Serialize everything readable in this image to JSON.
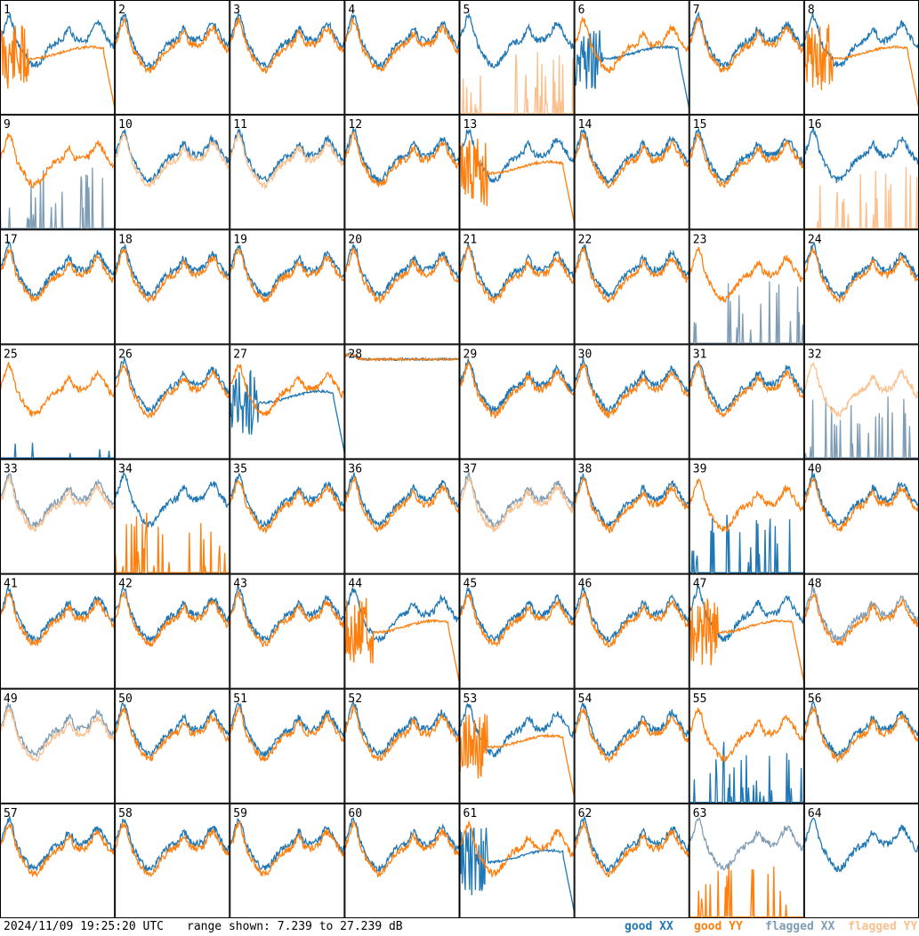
{
  "footer": {
    "timestamp": "2024/11/09 19:25:20 UTC",
    "range_label": "range shown: 7.239 to 27.239 dB",
    "legend": [
      {
        "label": "good XX",
        "color": "#1f77b4"
      },
      {
        "label": "good YY",
        "color": "#ff7f0e"
      },
      {
        "label": "flagged XX",
        "color": "#7f9db5"
      },
      {
        "label": "flagged YY",
        "color": "#fbc08d"
      }
    ]
  },
  "chart_data": {
    "type": "line",
    "title": "",
    "ylim": [
      7.239,
      27.239
    ],
    "grid": {
      "rows": 8,
      "cols": 8
    },
    "colors": {
      "good_xx": "#1f77b4",
      "good_yy": "#ff7f0e",
      "flagged_xx": "#7f9db5",
      "flagged_yy": "#fbc08d"
    },
    "panel_labels": [
      "1",
      "2",
      "3",
      "4",
      "5",
      "6",
      "7",
      "8",
      "9",
      "10",
      "11",
      "12",
      "13",
      "14",
      "15",
      "16",
      "17",
      "18",
      "19",
      "20",
      "21",
      "22",
      "23",
      "24",
      "25",
      "26",
      "27",
      "28",
      "29",
      "30",
      "31",
      "32",
      "33",
      "34",
      "35",
      "36",
      "37",
      "38",
      "39",
      "40",
      "41",
      "42",
      "43",
      "44",
      "45",
      "46",
      "47",
      "48",
      "49",
      "50",
      "51",
      "52",
      "53",
      "54",
      "55",
      "56",
      "57",
      "58",
      "59",
      "60",
      "61",
      "62",
      "63",
      "64"
    ],
    "series_per_panel": [
      {
        "xx": "good",
        "yy": "good",
        "yy_style": "decay"
      },
      {
        "xx": "good",
        "yy": "good"
      },
      {
        "xx": "good",
        "yy": "good"
      },
      {
        "xx": "good",
        "yy": "good"
      },
      {
        "xx": "good",
        "yy": "flagged",
        "yy_style": "spikes"
      },
      {
        "xx": "good",
        "yy": "good",
        "xx_style": "decay"
      },
      {
        "xx": "good",
        "yy": "good"
      },
      {
        "xx": "good",
        "yy": "good",
        "yy_style": "decay"
      },
      {
        "xx": "flagged",
        "yy": "good",
        "xx_style": "spikes"
      },
      {
        "xx": "good",
        "yy": "flagged"
      },
      {
        "xx": "good",
        "yy": "flagged"
      },
      {
        "xx": "good",
        "yy": "good"
      },
      {
        "xx": "good",
        "yy": "good",
        "yy_style": "decay"
      },
      {
        "xx": "good",
        "yy": "good"
      },
      {
        "xx": "good",
        "yy": "good"
      },
      {
        "xx": "good",
        "yy": "flagged",
        "yy_style": "spikes"
      },
      {
        "xx": "good",
        "yy": "good"
      },
      {
        "xx": "good",
        "yy": "good"
      },
      {
        "xx": "good",
        "yy": "good"
      },
      {
        "xx": "good",
        "yy": "good"
      },
      {
        "xx": "good",
        "yy": "good"
      },
      {
        "xx": "good",
        "yy": "good"
      },
      {
        "xx": "flagged",
        "yy": "good",
        "xx_style": "spikes"
      },
      {
        "xx": "good",
        "yy": "good"
      },
      {
        "xx": "good",
        "yy": "good",
        "xx_style": "flatlow"
      },
      {
        "xx": "good",
        "yy": "good"
      },
      {
        "xx": "good",
        "yy": "good",
        "xx_style": "decay"
      },
      {
        "xx": "good",
        "yy": "good",
        "style": "flat"
      },
      {
        "xx": "good",
        "yy": "good"
      },
      {
        "xx": "good",
        "yy": "good"
      },
      {
        "xx": "good",
        "yy": "good"
      },
      {
        "xx": "flagged",
        "yy": "flagged",
        "xx_style": "spikes"
      },
      {
        "xx": "flagged",
        "yy": "flagged"
      },
      {
        "xx": "good",
        "yy": "good",
        "yy_style": "spikes"
      },
      {
        "xx": "good",
        "yy": "good"
      },
      {
        "xx": "good",
        "yy": "good"
      },
      {
        "xx": "flagged",
        "yy": "flagged"
      },
      {
        "xx": "good",
        "yy": "good"
      },
      {
        "xx": "good",
        "yy": "good",
        "xx_style": "spikes"
      },
      {
        "xx": "good",
        "yy": "good"
      },
      {
        "xx": "good",
        "yy": "good"
      },
      {
        "xx": "good",
        "yy": "good"
      },
      {
        "xx": "good",
        "yy": "good"
      },
      {
        "xx": "good",
        "yy": "good",
        "yy_style": "decay"
      },
      {
        "xx": "good",
        "yy": "good"
      },
      {
        "xx": "good",
        "yy": "good"
      },
      {
        "xx": "good",
        "yy": "good",
        "yy_style": "decay"
      },
      {
        "xx": "flagged",
        "yy": "good"
      },
      {
        "xx": "flagged",
        "yy": "flagged"
      },
      {
        "xx": "good",
        "yy": "good"
      },
      {
        "xx": "good",
        "yy": "good"
      },
      {
        "xx": "good",
        "yy": "good"
      },
      {
        "xx": "good",
        "yy": "good",
        "yy_style": "decay"
      },
      {
        "xx": "good",
        "yy": "good"
      },
      {
        "xx": "good",
        "yy": "good",
        "xx_style": "spikes"
      },
      {
        "xx": "good",
        "yy": "good"
      },
      {
        "xx": "good",
        "yy": "good"
      },
      {
        "xx": "good",
        "yy": "good"
      },
      {
        "xx": "good",
        "yy": "good"
      },
      {
        "xx": "good",
        "yy": "good"
      },
      {
        "xx": "good",
        "yy": "good",
        "xx_style": "decay"
      },
      {
        "xx": "good",
        "yy": "good"
      },
      {
        "xx": "flagged",
        "yy": "good",
        "yy_style": "spikes"
      },
      {
        "xx": "good",
        "yy": "none"
      }
    ]
  }
}
